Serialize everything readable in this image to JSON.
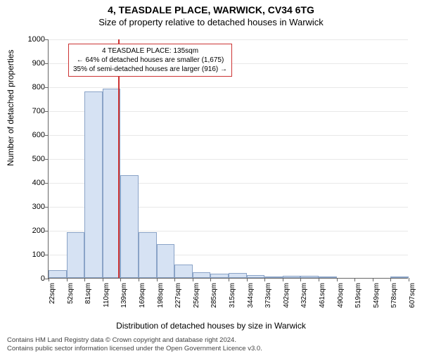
{
  "title": "4, TEASDALE PLACE, WARWICK, CV34 6TG",
  "subtitle": "Size of property relative to detached houses in Warwick",
  "ylabel": "Number of detached properties",
  "xlabel": "Distribution of detached houses by size in Warwick",
  "footnote_line1": "Contains HM Land Registry data © Crown copyright and database right 2024.",
  "footnote_line2": "Contains public sector information licensed under the Open Government Licence v3.0.",
  "chart": {
    "type": "histogram",
    "ylim": [
      0,
      1000
    ],
    "ytick_step": 100,
    "background_color": "#ffffff",
    "grid_color": "#e8e8e8",
    "axis_color": "#666666",
    "bar_fill": "#d6e2f3",
    "bar_border": "#8aa3c7",
    "marker_color": "#cc3333",
    "marker_x_value": 135,
    "annot_border": "#cc3333",
    "annot_lines": [
      "4 TEASDALE PLACE: 135sqm",
      "← 64% of detached houses are smaller (1,675)",
      "35% of semi-detached houses are larger (916) →"
    ],
    "x_bin_width": 29.3,
    "x_start": 22,
    "x_labels": [
      "22sqm",
      "52sqm",
      "81sqm",
      "110sqm",
      "139sqm",
      "169sqm",
      "198sqm",
      "227sqm",
      "256sqm",
      "285sqm",
      "315sqm",
      "344sqm",
      "373sqm",
      "402sqm",
      "432sqm",
      "461sqm",
      "490sqm",
      "519sqm",
      "549sqm",
      "578sqm",
      "607sqm"
    ],
    "values": [
      32,
      190,
      780,
      790,
      430,
      190,
      140,
      55,
      25,
      18,
      20,
      12,
      3,
      8,
      10,
      3,
      0,
      0,
      0,
      3
    ],
    "label_fontsize": 12,
    "title_fontsize": 14,
    "tick_fontsize": 11
  }
}
